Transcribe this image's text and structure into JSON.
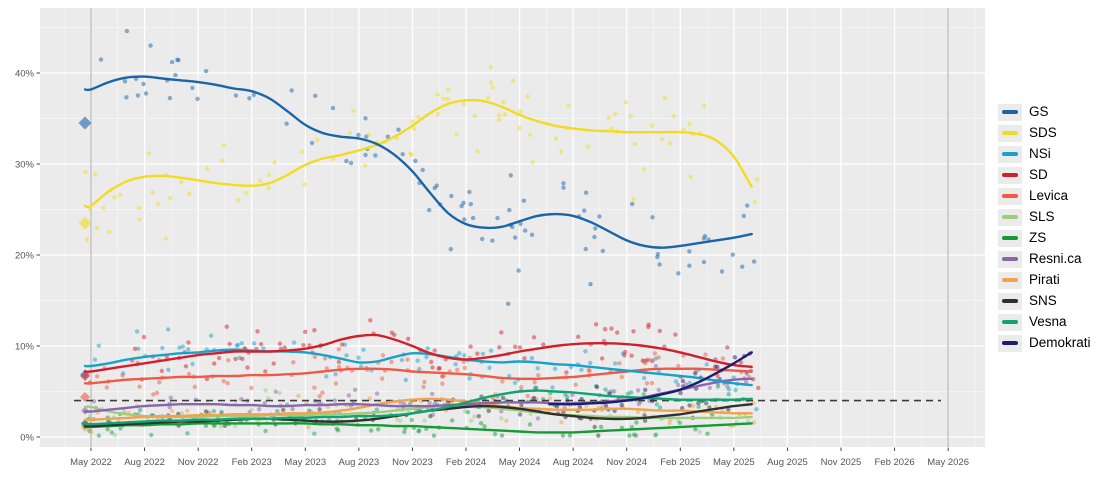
{
  "page": {
    "background": "#ffffff",
    "panel_background": "#ebebeb",
    "grid_color": "#ffffff",
    "axis_text_color": "#555555",
    "tick_color": "#333333",
    "threshold_color": "#3c3c3c",
    "election_line_color": "#c4c4c4"
  },
  "chart_data": {
    "type": "scatter",
    "subtype": "polls-with-smoothed-trend-lines",
    "title": "",
    "xlabel": "",
    "ylabel": "",
    "x_tick_labels": [
      "May 2022",
      "Aug 2022",
      "Nov 2022",
      "Feb 2023",
      "May 2023",
      "Aug 2023",
      "Nov 2023",
      "Feb 2024",
      "May 2024",
      "Aug 2024",
      "Nov 2024",
      "Feb 2025",
      "May 2025",
      "Aug 2025",
      "Nov 2025",
      "Feb 2026",
      "May 2026"
    ],
    "months_per_tick": 3,
    "y_ticks_pct": [
      0,
      10,
      20,
      30,
      40
    ],
    "y_tick_labels": [
      "0%",
      "10%",
      "20%",
      "30%",
      "40%"
    ],
    "y_minor_pct": [
      5,
      15,
      25,
      35,
      45
    ],
    "ylim": [
      0,
      47
    ],
    "grid": true,
    "legend_position": "right",
    "threshold_pct": 4,
    "threshold_style": "dashed",
    "election_marker_months": [
      0,
      48
    ],
    "trend_month0_label": "May 2022",
    "trend_last_month_label": "Jun 2025",
    "series": [
      {
        "name": "GS",
        "color": "#1a64a8",
        "election_result": 34.5,
        "trend": [
          38.2,
          39.0,
          39.5,
          39.6,
          39.4,
          39.2,
          39.0,
          38.7,
          38.3,
          38.0,
          37.2,
          35.8,
          34.3,
          33.4,
          33.0,
          32.8,
          32.2,
          31.0,
          29.2,
          26.8,
          24.6,
          23.4,
          23.0,
          23.1,
          23.7,
          24.3,
          24.5,
          24.3,
          23.6,
          22.6,
          21.6,
          21.0,
          20.8,
          21.0,
          21.3,
          21.6,
          21.9,
          22.3
        ],
        "scatter": {
          "points": 95,
          "sd": 2.3,
          "seed": 11,
          "t_start": -0.4,
          "t_end": 37.4
        }
      },
      {
        "name": "SDS",
        "color": "#f2dc23",
        "election_result": 23.5,
        "trend": [
          25.4,
          27.0,
          28.1,
          28.6,
          28.7,
          28.5,
          28.2,
          27.9,
          27.7,
          27.6,
          27.9,
          28.8,
          29.9,
          30.6,
          31.0,
          31.5,
          32.1,
          33.0,
          34.2,
          35.6,
          36.6,
          37.0,
          36.9,
          36.3,
          35.4,
          34.7,
          34.2,
          33.9,
          33.7,
          33.6,
          33.5,
          33.5,
          33.5,
          33.5,
          33.3,
          32.6,
          30.8,
          27.5
        ],
        "scatter": {
          "points": 95,
          "sd": 2.2,
          "seed": 22,
          "t_start": -0.4,
          "t_end": 37.4
        }
      },
      {
        "name": "NSi",
        "color": "#18a1c9",
        "election_result": 6.9,
        "trend": [
          7.8,
          8.1,
          8.5,
          8.8,
          9.0,
          9.2,
          9.3,
          9.5,
          9.6,
          9.5,
          9.4,
          9.4,
          9.3,
          9.0,
          8.6,
          8.2,
          8.3,
          8.8,
          9.2,
          9.1,
          8.8,
          8.5,
          8.3,
          8.2,
          8.3,
          8.2,
          8.0,
          7.9,
          7.7,
          7.5,
          7.3,
          7.1,
          6.9,
          6.7,
          6.5,
          6.2,
          5.9,
          5.7
        ],
        "scatter": {
          "points": 85,
          "sd": 1.2,
          "seed": 33,
          "t_start": -0.4,
          "t_end": 37.4
        }
      },
      {
        "name": "SD",
        "color": "#d31f2b",
        "election_result": 6.7,
        "trend": [
          7.2,
          7.5,
          7.8,
          8.1,
          8.4,
          8.7,
          9.0,
          9.2,
          9.4,
          9.4,
          9.4,
          9.5,
          9.7,
          10.1,
          10.7,
          11.1,
          11.2,
          10.7,
          10.0,
          9.2,
          8.7,
          8.5,
          8.7,
          9.0,
          9.4,
          9.7,
          10.0,
          10.2,
          10.3,
          10.3,
          10.2,
          10.0,
          9.7,
          9.3,
          8.8,
          8.3,
          7.9,
          7.7
        ],
        "scatter": {
          "points": 90,
          "sd": 1.3,
          "seed": 44,
          "t_start": -0.4,
          "t_end": 37.4
        }
      },
      {
        "name": "Levica",
        "color": "#ef5a46",
        "election_result": 4.4,
        "trend": [
          5.9,
          6.1,
          6.3,
          6.4,
          6.5,
          6.6,
          6.6,
          6.7,
          6.7,
          6.8,
          6.8,
          6.9,
          7.0,
          7.2,
          7.4,
          7.5,
          7.5,
          7.4,
          7.2,
          7.1,
          7.0,
          6.9,
          6.7,
          6.5,
          6.4,
          6.4,
          6.5,
          6.6,
          6.8,
          7.0,
          7.2,
          7.4,
          7.5,
          7.5,
          7.5,
          7.4,
          7.3,
          7.2
        ],
        "scatter": {
          "points": 85,
          "sd": 1.1,
          "seed": 55,
          "t_start": -0.4,
          "t_end": 37.4
        }
      },
      {
        "name": "SLS",
        "color": "#9dce7f",
        "election_result": null,
        "trend": [
          3.3,
          2.8,
          2.5,
          2.3,
          2.2,
          2.2,
          2.2,
          2.3,
          2.3,
          2.3,
          2.4,
          2.4,
          2.4,
          2.5,
          2.5,
          2.6,
          2.7,
          2.9,
          3.1,
          3.3,
          3.4,
          3.4,
          3.3,
          3.1,
          2.9,
          2.7,
          2.5,
          2.4,
          2.3,
          2.2,
          2.2,
          2.1,
          2.1,
          2.1,
          2.1,
          2.1,
          2.1,
          2.2
        ],
        "scatter": {
          "points": 60,
          "sd": 0.8,
          "seed": 66,
          "t_start": -0.4,
          "t_end": 37.4
        }
      },
      {
        "name": "ZS",
        "color": "#159b33",
        "election_result": null,
        "trend": [
          1.1,
          1.2,
          1.3,
          1.3,
          1.4,
          1.4,
          1.5,
          1.5,
          1.5,
          1.5,
          1.5,
          1.5,
          1.5,
          1.4,
          1.4,
          1.3,
          1.3,
          1.2,
          1.2,
          1.1,
          1.0,
          0.9,
          0.8,
          0.7,
          0.6,
          0.5,
          0.5,
          0.5,
          0.6,
          0.7,
          0.8,
          0.9,
          1.0,
          1.1,
          1.2,
          1.3,
          1.4,
          1.5
        ],
        "scatter": {
          "points": 50,
          "sd": 0.7,
          "seed": 77,
          "t_start": -0.4,
          "t_end": 37.4
        }
      },
      {
        "name": "Resni.ca",
        "color": "#8766ab",
        "election_result": 2.9,
        "trend": [
          2.8,
          3.0,
          3.2,
          3.4,
          3.5,
          3.6,
          3.6,
          3.6,
          3.5,
          3.5,
          3.4,
          3.4,
          3.5,
          3.5,
          3.6,
          3.6,
          3.5,
          3.4,
          3.4,
          3.4,
          3.5,
          3.6,
          3.7,
          3.8,
          3.8,
          3.8,
          3.7,
          3.7,
          3.8,
          3.9,
          4.1,
          4.4,
          4.8,
          5.2,
          5.6,
          6.0,
          6.3,
          6.4
        ],
        "scatter": {
          "points": 75,
          "sd": 0.8,
          "seed": 88,
          "t_start": -0.4,
          "t_end": 37.4
        }
      },
      {
        "name": "Pirati",
        "color": "#f2a14e",
        "election_result": 1.0,
        "trend": [
          1.9,
          2.0,
          2.1,
          2.2,
          2.3,
          2.3,
          2.4,
          2.4,
          2.5,
          2.5,
          2.5,
          2.6,
          2.6,
          2.7,
          2.9,
          3.2,
          3.6,
          3.9,
          4.1,
          4.2,
          4.1,
          3.9,
          3.7,
          3.4,
          3.2,
          3.1,
          3.0,
          3.0,
          3.0,
          3.1,
          3.1,
          3.0,
          2.9,
          2.9,
          2.8,
          2.7,
          2.6,
          2.6
        ],
        "scatter": {
          "points": 65,
          "sd": 0.8,
          "seed": 99,
          "t_start": -0.4,
          "t_end": 37.4
        }
      },
      {
        "name": "SNS",
        "color": "#2f2f2f",
        "election_result": 1.5,
        "trend": [
          1.2,
          1.3,
          1.4,
          1.5,
          1.6,
          1.7,
          1.7,
          1.8,
          1.9,
          2.0,
          2.0,
          1.9,
          1.8,
          1.7,
          1.7,
          1.8,
          2.0,
          2.3,
          2.6,
          2.9,
          3.1,
          3.3,
          3.4,
          3.3,
          3.1,
          2.8,
          2.5,
          2.3,
          2.1,
          2.0,
          2.0,
          2.1,
          2.3,
          2.5,
          2.8,
          3.1,
          3.4,
          3.6
        ],
        "scatter": {
          "points": 65,
          "sd": 0.8,
          "seed": 110,
          "t_start": -0.4,
          "t_end": 37.4
        }
      },
      {
        "name": "Vesna",
        "color": "#11a370",
        "election_result": 1.3,
        "trend": [
          1.4,
          1.5,
          1.6,
          1.7,
          1.8,
          1.8,
          1.9,
          1.9,
          2.0,
          2.0,
          2.0,
          2.1,
          2.1,
          2.2,
          2.2,
          2.3,
          2.3,
          2.4,
          2.6,
          2.9,
          3.3,
          3.8,
          4.3,
          4.7,
          5.0,
          5.1,
          5.0,
          4.9,
          4.7,
          4.5,
          4.4,
          4.3,
          4.2,
          4.1,
          4.1,
          4.1,
          4.1,
          4.2
        ],
        "scatter": {
          "points": 75,
          "sd": 0.9,
          "seed": 121,
          "t_start": -0.4,
          "t_end": 37.4
        }
      },
      {
        "name": "Demokrati",
        "color": "#1d1d6b",
        "election_result": null,
        "trend": [
          null,
          null,
          null,
          null,
          null,
          null,
          null,
          null,
          null,
          null,
          null,
          null,
          null,
          null,
          null,
          null,
          null,
          null,
          null,
          null,
          null,
          null,
          null,
          null,
          null,
          null,
          3.6,
          3.6,
          3.7,
          3.8,
          4.0,
          4.3,
          4.7,
          5.2,
          6.0,
          7.0,
          8.1,
          9.3
        ],
        "scatter": {
          "points": 26,
          "sd": 0.9,
          "seed": 132,
          "t_start": 25.6,
          "t_end": 37.4
        }
      }
    ],
    "z_order": [
      "SLS",
      "Pirati",
      "ZS",
      "SNS",
      "Resni.ca",
      "Vesna",
      "Levica",
      "NSi",
      "SD",
      "SDS",
      "GS",
      "Demokrati"
    ]
  }
}
